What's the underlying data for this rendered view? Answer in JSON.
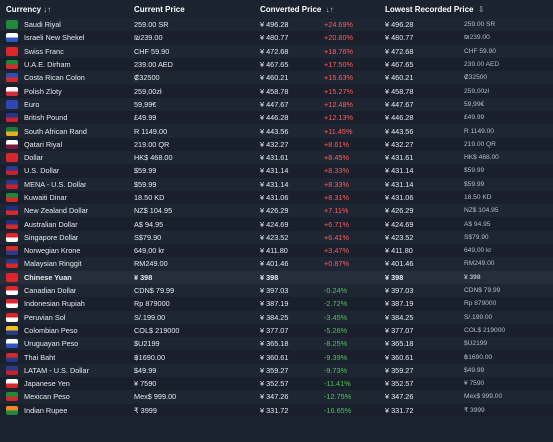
{
  "headers": {
    "currency": "Currency",
    "current_price": "Current Price",
    "converted_price": "Converted Price",
    "lowest_recorded": "Lowest Recorded Price"
  },
  "rows": [
    {
      "currency": "Saudi Riyal",
      "price": "259.00 SR",
      "converted": "¥ 496.28",
      "change": "+24.69%",
      "low": "¥ 496.28",
      "low_local": "259.00 SR",
      "dir": "up",
      "flag": [
        "#1d8a3a",
        "#1d8a3a"
      ]
    },
    {
      "currency": "Israeli New Shekel",
      "price": "₪239.00",
      "converted": "¥ 480.77",
      "change": "+20.80%",
      "low": "¥ 480.77",
      "low_local": "₪239.00",
      "dir": "up",
      "flag": [
        "#ffffff",
        "#2f57c8"
      ]
    },
    {
      "currency": "Swiss Franc",
      "price": "CHF 59.90",
      "converted": "¥ 472.68",
      "change": "+18.76%",
      "low": "¥ 472.68",
      "low_local": "CHF 59.90",
      "dir": "up",
      "flag": [
        "#e0262b",
        "#e0262b"
      ]
    },
    {
      "currency": "U.A.E. Dirham",
      "price": "239.00 AED",
      "converted": "¥ 467.65",
      "change": "+17.50%",
      "low": "¥ 467.65",
      "low_local": "239.00 AED",
      "dir": "up",
      "flag": [
        "#1d8a3a",
        "#e0262b"
      ]
    },
    {
      "currency": "Costa Rican Colon",
      "price": "₡32500",
      "converted": "¥ 460.21",
      "change": "+15.63%",
      "low": "¥ 460.21",
      "low_local": "₡32500",
      "dir": "up",
      "flag": [
        "#2f4fb0",
        "#d62828"
      ]
    },
    {
      "currency": "Polish Zloty",
      "price": "259,00zł",
      "converted": "¥ 458.78",
      "change": "+15.27%",
      "low": "¥ 458.78",
      "low_local": "259,00zł",
      "dir": "up",
      "flag": [
        "#ffffff",
        "#d62840"
      ]
    },
    {
      "currency": "Euro",
      "price": "59,99€",
      "converted": "¥ 447.67",
      "change": "+12.48%",
      "low": "¥ 447.67",
      "low_local": "59,99€",
      "dir": "up",
      "flag": [
        "#2f47b5",
        "#2f47b5"
      ]
    },
    {
      "currency": "British Pound",
      "price": "£49.99",
      "converted": "¥ 446.28",
      "change": "+12.13%",
      "low": "¥ 446.28",
      "low_local": "£49.99",
      "dir": "up",
      "flag": [
        "#25378a",
        "#cf2030"
      ]
    },
    {
      "currency": "South African Rand",
      "price": "R 1149.00",
      "converted": "¥ 443.56",
      "change": "+11.45%",
      "low": "¥ 443.56",
      "low_local": "R 1149.00",
      "dir": "up",
      "flag": [
        "#1d7a3a",
        "#e0b020"
      ]
    },
    {
      "currency": "Qatari Riyal",
      "price": "219.00 QR",
      "converted": "¥ 432.27",
      "change": "+8.61%",
      "low": "¥ 432.27",
      "low_local": "219.00 QR",
      "dir": "up",
      "flag": [
        "#ffffff",
        "#7a1838"
      ]
    },
    {
      "currency": "Dollar",
      "price": "HK$ 468.00",
      "converted": "¥ 431.61",
      "change": "+8.45%",
      "low": "¥ 431.61",
      "low_local": "HK$ 468.00",
      "dir": "up",
      "flag": [
        "#d62828",
        "#d62828"
      ]
    },
    {
      "currency": "U.S. Dollar",
      "price": "$59.99",
      "converted": "¥ 431.14",
      "change": "+8.33%",
      "low": "¥ 431.14",
      "low_local": "$59.99",
      "dir": "up",
      "flag": [
        "#2a3a8a",
        "#c8202c"
      ]
    },
    {
      "currency": "MENA - U.S. Dollar",
      "price": "$59.99",
      "converted": "¥ 431.14",
      "change": "+8.33%",
      "low": "¥ 431.14",
      "low_local": "$59.99",
      "dir": "up",
      "flag": [
        "#2a3a8a",
        "#c8202c"
      ]
    },
    {
      "currency": "Kuwaiti Dinar",
      "price": "18.50 KD",
      "converted": "¥ 431.06",
      "change": "+8.31%",
      "low": "¥ 431.06",
      "low_local": "18.50 KD",
      "dir": "up",
      "flag": [
        "#1d8a3a",
        "#d62828"
      ]
    },
    {
      "currency": "New Zealand Dollar",
      "price": "NZ$ 104.95",
      "converted": "¥ 426.29",
      "change": "+7.11%",
      "low": "¥ 426.29",
      "low_local": "NZ$ 104.95",
      "dir": "up",
      "flag": [
        "#203080",
        "#d62828"
      ]
    },
    {
      "currency": "Australian Dollar",
      "price": "A$ 94.95",
      "converted": "¥ 424.69",
      "change": "+6.71%",
      "low": "¥ 424.69",
      "low_local": "A$ 94.95",
      "dir": "up",
      "flag": [
        "#203080",
        "#d62828"
      ]
    },
    {
      "currency": "Singapore Dollar",
      "price": "S$79.90",
      "converted": "¥ 423.52",
      "change": "+6.41%",
      "low": "¥ 423.52",
      "low_local": "S$79.90",
      "dir": "up",
      "flag": [
        "#e0262b",
        "#ffffff"
      ]
    },
    {
      "currency": "Norwegian Krone",
      "price": "649,00 kr",
      "converted": "¥ 411.80",
      "change": "+3.47%",
      "low": "¥ 411.80",
      "low_local": "649,00 kr",
      "dir": "up",
      "flag": [
        "#d62828",
        "#2a3a8a"
      ]
    },
    {
      "currency": "Malaysian Ringgit",
      "price": "RM249.00",
      "converted": "¥ 401.46",
      "change": "+0.87%",
      "low": "¥ 401.46",
      "low_local": "RM249.00",
      "dir": "up",
      "flag": [
        "#2a3a8a",
        "#d62828"
      ]
    },
    {
      "currency": "Chinese Yuan",
      "price": "¥ 398",
      "converted": "¥ 398",
      "change": "",
      "low": "¥ 398",
      "low_local": "¥ 398",
      "dir": "zero",
      "flag": [
        "#e0262b",
        "#e0262b"
      ],
      "hl": true
    },
    {
      "currency": "Canadian Dollar",
      "price": "CDN$ 79.99",
      "converted": "¥ 397.03",
      "change": "-0.24%",
      "low": "¥ 397.03",
      "low_local": "CDN$ 79.99",
      "dir": "down",
      "flag": [
        "#e0262b",
        "#ffffff"
      ]
    },
    {
      "currency": "Indonesian Rupiah",
      "price": "Rp 879000",
      "converted": "¥ 387.19",
      "change": "-2.72%",
      "low": "¥ 387.19",
      "low_local": "Rp 879000",
      "dir": "down",
      "flag": [
        "#e0262b",
        "#ffffff"
      ]
    },
    {
      "currency": "Peruvian Sol",
      "price": "S/.199.00",
      "converted": "¥ 384.25",
      "change": "-3.45%",
      "low": "¥ 384.25",
      "low_local": "S/.199.00",
      "dir": "down",
      "flag": [
        "#d62828",
        "#ffffff"
      ]
    },
    {
      "currency": "Colombian Peso",
      "price": "COL$ 219000",
      "converted": "¥ 377.07",
      "change": "-5.26%",
      "low": "¥ 377.07",
      "low_local": "COL$ 219000",
      "dir": "down",
      "flag": [
        "#f0c020",
        "#2a3a8a"
      ]
    },
    {
      "currency": "Uruguayan Peso",
      "price": "$U2199",
      "converted": "¥ 365.18",
      "change": "-8.25%",
      "low": "¥ 365.18",
      "low_local": "$U2199",
      "dir": "down",
      "flag": [
        "#ffffff",
        "#2f57c8"
      ]
    },
    {
      "currency": "Thai Baht",
      "price": "฿1690.00",
      "converted": "¥ 360.61",
      "change": "-9.39%",
      "low": "¥ 360.61",
      "low_local": "฿1690.00",
      "dir": "down",
      "flag": [
        "#d62828",
        "#2a3a8a"
      ]
    },
    {
      "currency": "LATAM - U.S. Dollar",
      "price": "$49.99",
      "converted": "¥ 359.27",
      "change": "-9.73%",
      "low": "¥ 359.27",
      "low_local": "$49.99",
      "dir": "down",
      "flag": [
        "#2a3a8a",
        "#c8202c"
      ]
    },
    {
      "currency": "Japanese Yen",
      "price": "¥ 7590",
      "converted": "¥ 352.57",
      "change": "-11.41%",
      "low": "¥ 352.57",
      "low_local": "¥ 7590",
      "dir": "down",
      "flag": [
        "#ffffff",
        "#d62828"
      ]
    },
    {
      "currency": "Mexican Peso",
      "price": "Mex$ 999.00",
      "converted": "¥ 347.26",
      "change": "-12.75%",
      "low": "¥ 347.26",
      "low_local": "Mex$ 999.00",
      "dir": "down",
      "flag": [
        "#1d8a3a",
        "#d62828"
      ]
    },
    {
      "currency": "Indian Rupee",
      "price": "₹ 3999",
      "converted": "¥ 331.72",
      "change": "-16.65%",
      "low": "¥ 331.72",
      "low_local": "₹ 3999",
      "dir": "down",
      "flag": [
        "#f08a20",
        "#1d8a3a"
      ]
    }
  ]
}
